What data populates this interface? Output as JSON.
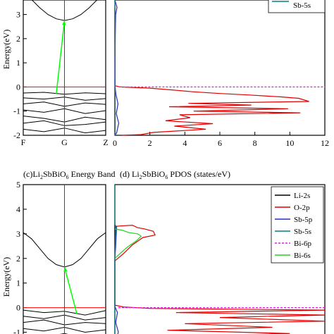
{
  "chart_data": [
    {
      "id": "band-top",
      "type": "line",
      "title": "",
      "ylabel": "Energy(eV)",
      "ylim": [
        -2,
        3.6
      ],
      "yticks": [
        -2,
        -1,
        0,
        1,
        2,
        3
      ],
      "xtick_labels": [
        "F",
        "G",
        "Z"
      ],
      "kpoints": [
        0,
        1,
        2
      ],
      "vertical_line_at": 1,
      "fermi_level": 0,
      "colors": {
        "bands": "#000000",
        "fermi": "#ff0000",
        "gamma": "#ff0000",
        "transition": "#00ff00"
      },
      "transition": {
        "from": [
          0.8,
          -0.3
        ],
        "to": [
          1.0,
          2.75
        ]
      },
      "conduction_bands": [
        {
          "x": [
            0,
            0.2,
            0.4,
            0.6,
            0.8,
            1.0,
            1.2,
            1.4,
            1.6,
            1.8,
            2.0
          ],
          "y": [
            3.9,
            3.62,
            3.28,
            3.0,
            2.82,
            2.75,
            2.82,
            3.0,
            3.28,
            3.62,
            3.9
          ]
        }
      ],
      "valence_bands": [
        {
          "x": [
            0,
            0.5,
            1.0,
            1.5,
            2.0
          ],
          "y": [
            -0.25,
            -0.22,
            -0.3,
            -0.24,
            -0.28
          ]
        },
        {
          "x": [
            0,
            0.5,
            1.0,
            1.5,
            2.0
          ],
          "y": [
            -0.45,
            -0.5,
            -0.42,
            -0.55,
            -0.48
          ]
        },
        {
          "x": [
            0,
            0.5,
            1.0,
            1.5,
            2.0
          ],
          "y": [
            -0.7,
            -0.62,
            -0.8,
            -0.66,
            -0.72
          ]
        },
        {
          "x": [
            0,
            0.5,
            1.0,
            1.5,
            2.0
          ],
          "y": [
            -0.95,
            -1.05,
            -0.9,
            -1.1,
            -0.98
          ]
        },
        {
          "x": [
            0,
            0.5,
            1.0,
            1.5,
            2.0
          ],
          "y": [
            -1.2,
            -1.3,
            -1.45,
            -1.25,
            -1.35
          ]
        },
        {
          "x": [
            0,
            0.5,
            1.0,
            1.5,
            2.0
          ],
          "y": [
            -1.5,
            -1.4,
            -1.6,
            -1.55,
            -1.45
          ]
        },
        {
          "x": [
            0,
            0.5,
            1.0,
            1.5,
            2.0
          ],
          "y": [
            -1.75,
            -1.85,
            -1.7,
            -1.9,
            -1.8
          ]
        }
      ]
    },
    {
      "id": "pdos-top",
      "type": "line",
      "title": "",
      "xlim": [
        0,
        12
      ],
      "xticks": [
        0,
        2,
        4,
        6,
        8,
        10,
        12
      ],
      "ylim": [
        -2,
        3.6
      ],
      "visible_legend_entries": [
        {
          "name": "Sb-5s",
          "color": "#008080"
        }
      ],
      "series": [
        {
          "name": "O-2p",
          "color": "#e00000",
          "points": [
            [
              0,
              0.05
            ],
            [
              0.3,
              0.0
            ],
            [
              2,
              -0.05
            ],
            [
              3.2,
              -0.12
            ],
            [
              4.5,
              -0.2
            ],
            [
              6,
              -0.27
            ],
            [
              7.6,
              -0.33
            ],
            [
              9.5,
              -0.41
            ],
            [
              10.5,
              -0.47
            ],
            [
              11.1,
              -0.6
            ],
            [
              4.2,
              -0.68
            ],
            [
              7.8,
              -0.75
            ],
            [
              3.1,
              -0.82
            ],
            [
              9.9,
              -0.9
            ],
            [
              4.5,
              -1.0
            ],
            [
              10.6,
              -1.07
            ],
            [
              3.7,
              -1.15
            ],
            [
              4.3,
              -1.27
            ],
            [
              2.9,
              -1.4
            ],
            [
              5.6,
              -1.52
            ],
            [
              3.4,
              -1.62
            ],
            [
              5.2,
              -1.75
            ],
            [
              2.2,
              -1.88
            ],
            [
              1.5,
              -1.97
            ],
            [
              0.4,
              -2.0
            ]
          ]
        },
        {
          "name": "Sb-5p",
          "color": "#2030c0",
          "points": [
            [
              0,
              3.6
            ],
            [
              0.12,
              3.3
            ],
            [
              0.05,
              3.0
            ],
            [
              0.02,
              2.0
            ],
            [
              0.0,
              0.1
            ],
            [
              0.06,
              -0.3
            ],
            [
              0.18,
              -0.7
            ],
            [
              0.08,
              -1.1
            ],
            [
              0.22,
              -1.5
            ],
            [
              0.1,
              -1.9
            ],
            [
              0.0,
              -2.0
            ]
          ]
        },
        {
          "name": "Sb-5s",
          "color": "#008080",
          "points": [
            [
              0.0,
              3.6
            ],
            [
              0.02,
              3.0
            ],
            [
              0.02,
              2.0
            ],
            [
              0.02,
              1.0
            ],
            [
              0.02,
              -1.0
            ],
            [
              0.02,
              -2.0
            ]
          ]
        },
        {
          "name": "Bi-6p",
          "color": "#e020e0",
          "dashed": true,
          "points": [
            [
              0.3,
              0.0
            ],
            [
              12,
              0.0
            ]
          ]
        }
      ]
    },
    {
      "id": "band-bottom",
      "type": "line",
      "title": "(c)Li2SbBiO6 Energy Band",
      "ylabel": "Energy(eV)",
      "ylim": [
        -1.3,
        5
      ],
      "yticks": [
        -1,
        0,
        1,
        2,
        3,
        4,
        5
      ],
      "vertical_line_at": 1,
      "fermi_level": 0,
      "colors": {
        "bands": "#000000",
        "fermi": "#ff0000",
        "gamma": "#ff0000",
        "transition": "#00ff00"
      },
      "transition": {
        "from": [
          1.3,
          -0.25
        ],
        "to": [
          1.0,
          1.65
        ]
      },
      "conduction_bands": [
        {
          "x": [
            0,
            0.2,
            0.4,
            0.6,
            0.8,
            1.0,
            1.2,
            1.4,
            1.6,
            1.8,
            2.0
          ],
          "y": [
            3.05,
            2.8,
            2.4,
            2.0,
            1.75,
            1.65,
            1.75,
            2.0,
            2.4,
            2.8,
            3.05
          ]
        }
      ],
      "valence_bands": [
        {
          "x": [
            0,
            0.5,
            1.0,
            1.5,
            2.0
          ],
          "y": [
            -0.1,
            -0.2,
            -0.15,
            -0.3,
            -0.12
          ]
        },
        {
          "x": [
            0,
            0.5,
            1.0,
            1.5,
            2.0
          ],
          "y": [
            -0.35,
            -0.45,
            -0.3,
            -0.5,
            -0.4
          ]
        },
        {
          "x": [
            0,
            0.5,
            1.0,
            1.5,
            2.0
          ],
          "y": [
            -0.6,
            -0.5,
            -0.7,
            -0.6,
            -0.65
          ]
        },
        {
          "x": [
            0,
            0.5,
            1.0,
            1.5,
            2.0
          ],
          "y": [
            -0.85,
            -0.95,
            -0.8,
            -1.0,
            -0.9
          ]
        },
        {
          "x": [
            0,
            0.5,
            1.0,
            1.5,
            2.0
          ],
          "y": [
            -1.1,
            -1.2,
            -1.05,
            -1.25,
            -1.15
          ]
        }
      ]
    },
    {
      "id": "pdos-bottom",
      "type": "line",
      "title": "(d) Li2SbBiO6 PDOS (states/eV)",
      "ylim": [
        -1.3,
        5
      ],
      "legend_position": "top-right",
      "series": [
        {
          "name": "Li-2s",
          "color": "#000000",
          "points": [
            [
              0,
              5
            ],
            [
              0,
              -1.3
            ]
          ]
        },
        {
          "name": "O-2p",
          "color": "#e00000",
          "points": [
            [
              0,
              3.3
            ],
            [
              0.3,
              3.32
            ],
            [
              1.0,
              3.35
            ],
            [
              1.3,
              3.25
            ],
            [
              1.7,
              3.2
            ],
            [
              2.2,
              3.1
            ],
            [
              2.3,
              2.95
            ],
            [
              1.6,
              2.85
            ],
            [
              1.0,
              2.55
            ],
            [
              0.5,
              2.2
            ],
            [
              0.0,
              1.9
            ],
            [
              0,
              0.1
            ],
            [
              0.5,
              0.03
            ],
            [
              2,
              -0.03
            ],
            [
              12,
              -0.1
            ],
            [
              3.5,
              -0.2
            ],
            [
              12,
              -0.3
            ],
            [
              6,
              -0.4
            ],
            [
              12,
              -0.55
            ],
            [
              4,
              -0.65
            ],
            [
              9,
              -0.8
            ],
            [
              3,
              -0.92
            ],
            [
              10,
              -1.05
            ],
            [
              2,
              -1.2
            ],
            [
              0.5,
              -1.3
            ]
          ]
        },
        {
          "name": "Sb-5p",
          "color": "#2030c0",
          "points": [
            [
              0,
              3.35
            ],
            [
              0.1,
              3.3
            ],
            [
              0.05,
              2.5
            ],
            [
              0,
              2.0
            ],
            [
              0,
              0.05
            ],
            [
              0.15,
              -0.2
            ],
            [
              0.05,
              -0.6
            ],
            [
              0.2,
              -1.0
            ],
            [
              0.05,
              -1.3
            ]
          ]
        },
        {
          "name": "Sb-5s",
          "color": "#008080",
          "points": [
            [
              0.0,
              5
            ],
            [
              0.0,
              3.4
            ],
            [
              0.05,
              3.3
            ],
            [
              0.0,
              2.0
            ],
            [
              0.0,
              -1.3
            ]
          ]
        },
        {
          "name": "Bi-6p",
          "color": "#e020e0",
          "dashed": true,
          "points": [
            [
              0.2,
              0.0
            ],
            [
              12,
              0.0
            ]
          ]
        },
        {
          "name": "Bi-6s",
          "color": "#20d020",
          "points": [
            [
              0,
              3.2
            ],
            [
              0.4,
              3.15
            ],
            [
              0.8,
              3.05
            ],
            [
              1.3,
              3.0
            ],
            [
              1.5,
              2.9
            ],
            [
              1.2,
              2.7
            ],
            [
              0.7,
              2.45
            ],
            [
              0.3,
              2.2
            ],
            [
              0,
              2.0
            ]
          ]
        }
      ]
    }
  ]
}
